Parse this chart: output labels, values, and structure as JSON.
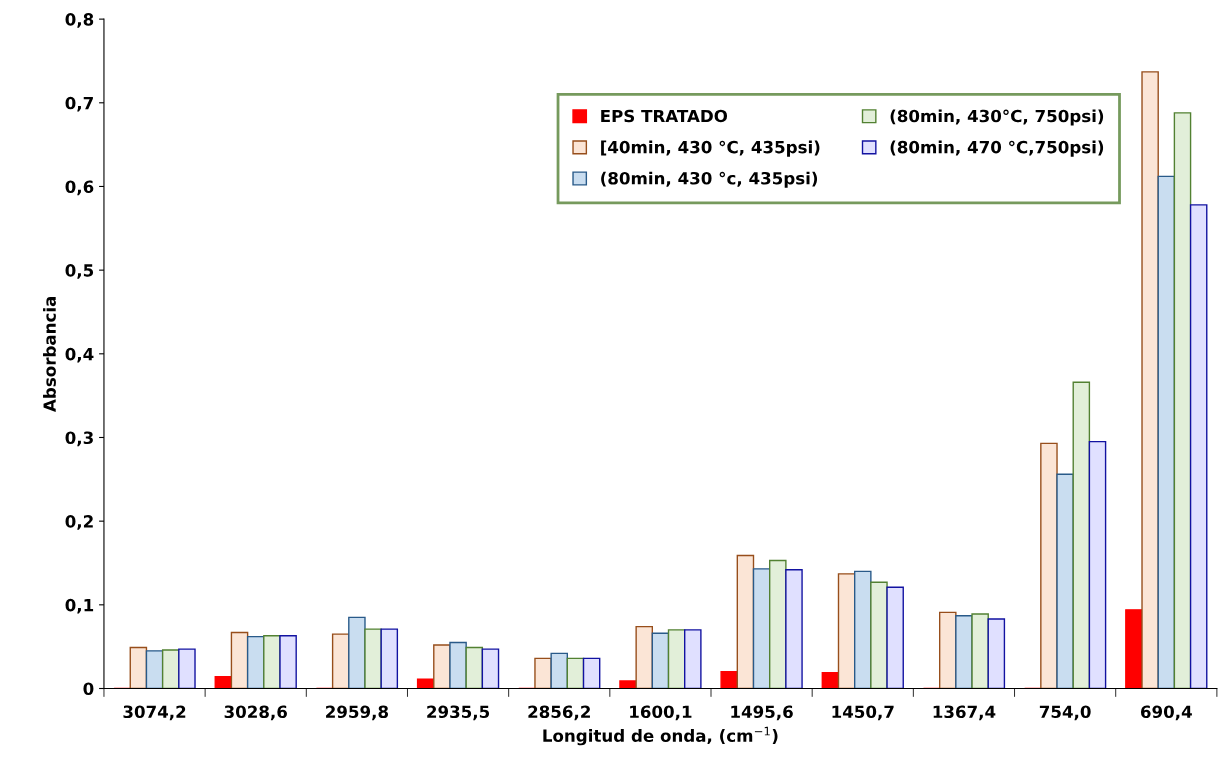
{
  "chart_data": {
    "type": "bar",
    "xlabel": "Longitud de onda, (cm$^{−1}$)",
    "ylabel": "Absorbancia",
    "categories": [
      "3074,2",
      "3028,6",
      "2959,8",
      "2935,5",
      "2856,2",
      "1600,1",
      "1495,6",
      "1450,7",
      "1367,4",
      "754,0",
      "690,4"
    ],
    "series": [
      {
        "name": "EPS TRATADO",
        "color": "#ff0000",
        "values": [
          0,
          0.014,
          0,
          0.011,
          0,
          0.009,
          0.02,
          0.019,
          0,
          0,
          0.094
        ]
      },
      {
        "name": "[40min, 430 °C, 435psi)",
        "color": "#fbe5d6",
        "values": [
          0.049,
          0.067,
          0.065,
          0.052,
          0.036,
          0.074,
          0.159,
          0.137,
          0.091,
          0.293,
          0.737
        ]
      },
      {
        "name": "(80min, 430 °c, 435psi)",
        "color": "#c9ddf0",
        "values": [
          0.045,
          0.062,
          0.085,
          0.055,
          0.042,
          0.066,
          0.143,
          0.14,
          0.087,
          0.256,
          0.612
        ]
      },
      {
        "name": "(80min, 430°C, 750psi)",
        "color": "#e2efd9",
        "values": [
          0.046,
          0.063,
          0.071,
          0.049,
          0.036,
          0.07,
          0.153,
          0.127,
          0.089,
          0.366,
          0.688
        ]
      },
      {
        "name": "(80min, 470 °C,750psi)",
        "color": "#e0e0ff",
        "values": [
          0.047,
          0.063,
          0.071,
          0.047,
          0.036,
          0.07,
          0.142,
          0.121,
          0.083,
          0.295,
          0.578
        ]
      }
    ],
    "ylim": [
      0,
      0.8
    ],
    "yticks": [
      0,
      {
        "value": 0.1,
        "label": "0,1"
      },
      {
        "value": 0.2,
        "label": "0,2"
      },
      {
        "value": 0.3,
        "label": "0,3"
      },
      {
        "value": 0.4,
        "label": "0,4"
      },
      {
        "value": 0.5,
        "label": "0,5"
      },
      {
        "value": 0.6,
        "label": "0,6"
      },
      {
        "value": 0.7,
        "label": "0,7"
      },
      {
        "value": 0.8,
        "label": "0,8"
      }
    ],
    "grid": false,
    "legend": "top right"
  }
}
